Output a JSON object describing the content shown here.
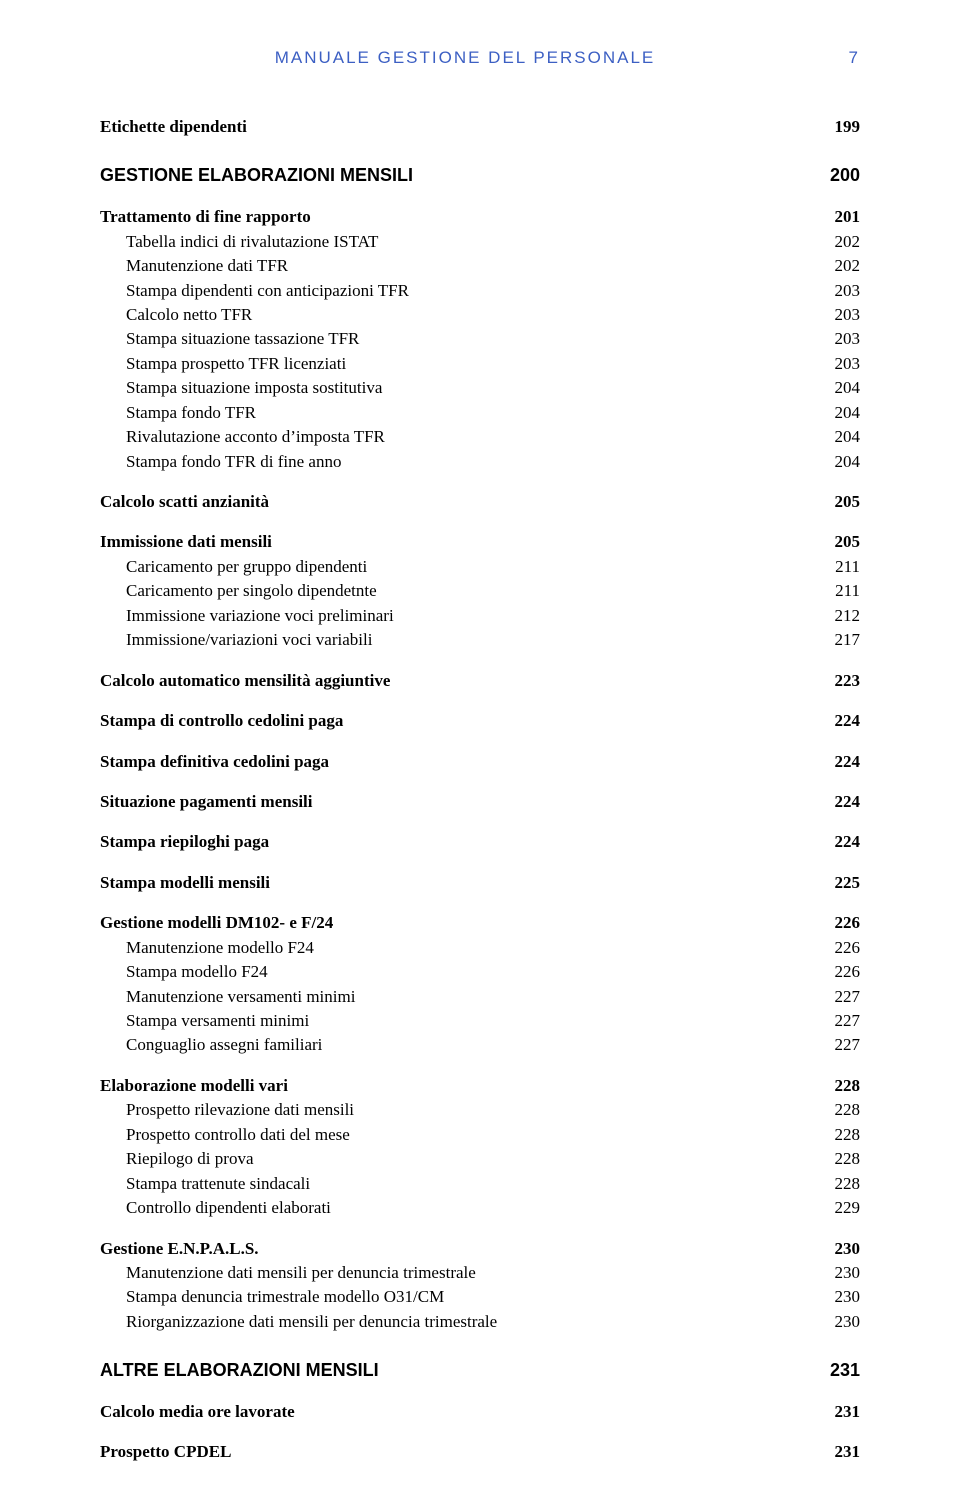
{
  "header": {
    "title": "MANUALE GESTIONE DEL PERSONALE",
    "page": "7"
  },
  "toc": [
    {
      "level": "h2",
      "bold": true,
      "indent": 0,
      "label": "Etichette dipendenti",
      "page": "199"
    },
    {
      "level": "h1",
      "bold": true,
      "indent": 0,
      "label": "GESTIONE ELABORAZIONI MENSILI",
      "page": "200"
    },
    {
      "level": "h2",
      "bold": true,
      "indent": 0,
      "label": "Trattamento di fine rapporto",
      "page": "201"
    },
    {
      "level": "h3",
      "bold": false,
      "indent": 1,
      "label": "Tabella indici di rivalutazione ISTAT",
      "page": "202"
    },
    {
      "level": "h3",
      "bold": false,
      "indent": 1,
      "label": "Manutenzione dati TFR",
      "page": "202"
    },
    {
      "level": "h3",
      "bold": false,
      "indent": 1,
      "label": "Stampa dipendenti con anticipazioni TFR",
      "page": "203"
    },
    {
      "level": "h3",
      "bold": false,
      "indent": 1,
      "label": "Calcolo netto TFR",
      "page": "203"
    },
    {
      "level": "h3",
      "bold": false,
      "indent": 1,
      "label": "Stampa situazione tassazione TFR",
      "page": "203"
    },
    {
      "level": "h3",
      "bold": false,
      "indent": 1,
      "label": "Stampa prospetto TFR licenziati",
      "page": "203"
    },
    {
      "level": "h3",
      "bold": false,
      "indent": 1,
      "label": "Stampa situazione imposta sostitutiva",
      "page": "204"
    },
    {
      "level": "h3",
      "bold": false,
      "indent": 1,
      "label": "Stampa fondo TFR",
      "page": "204"
    },
    {
      "level": "h3",
      "bold": false,
      "indent": 1,
      "label": "Rivalutazione acconto d’imposta TFR",
      "page": "204"
    },
    {
      "level": "h3",
      "bold": false,
      "indent": 1,
      "label": "Stampa fondo TFR di fine anno",
      "page": "204"
    },
    {
      "level": "h2",
      "bold": true,
      "indent": 0,
      "label": "Calcolo scatti anzianità",
      "page": "205"
    },
    {
      "level": "h2",
      "bold": true,
      "indent": 0,
      "label": "Immissione dati mensili",
      "page": "205"
    },
    {
      "level": "h3",
      "bold": false,
      "indent": 1,
      "label": "Caricamento per gruppo dipendenti",
      "page": "211"
    },
    {
      "level": "h3",
      "bold": false,
      "indent": 1,
      "label": "Caricamento per singolo dipendetnte",
      "page": "211"
    },
    {
      "level": "h3",
      "bold": false,
      "indent": 1,
      "label": "Immissione variazione voci preliminari",
      "page": "212"
    },
    {
      "level": "h3",
      "bold": false,
      "indent": 1,
      "label": "Immissione/variazioni voci variabili",
      "page": "217"
    },
    {
      "level": "h2",
      "bold": true,
      "indent": 0,
      "label": "Calcolo automatico mensilità aggiuntive",
      "page": "223"
    },
    {
      "level": "h2",
      "bold": true,
      "indent": 0,
      "label": "Stampa di controllo cedolini paga",
      "page": "224"
    },
    {
      "level": "h2",
      "bold": true,
      "indent": 0,
      "label": "Stampa definitiva cedolini paga",
      "page": "224"
    },
    {
      "level": "h2",
      "bold": true,
      "indent": 0,
      "label": "Situazione pagamenti mensili",
      "page": "224"
    },
    {
      "level": "h2",
      "bold": true,
      "indent": 0,
      "label": "Stampa riepiloghi  paga",
      "page": "224"
    },
    {
      "level": "h2",
      "bold": true,
      "indent": 0,
      "label": "Stampa modelli mensili",
      "page": "225"
    },
    {
      "level": "h2",
      "bold": true,
      "indent": 0,
      "label": "Gestione modelli DM102- e  F/24",
      "page": "226"
    },
    {
      "level": "h3",
      "bold": false,
      "indent": 1,
      "label": "Manutenzione modello F24",
      "page": "226"
    },
    {
      "level": "h3",
      "bold": false,
      "indent": 1,
      "label": "Stampa modello F24",
      "page": "226"
    },
    {
      "level": "h3",
      "bold": false,
      "indent": 1,
      "label": "Manutenzione versamenti minimi",
      "page": "227"
    },
    {
      "level": "h3",
      "bold": false,
      "indent": 1,
      "label": "Stampa versamenti minimi",
      "page": "227"
    },
    {
      "level": "h3",
      "bold": false,
      "indent": 1,
      "label": "Conguaglio assegni familiari",
      "page": "227"
    },
    {
      "level": "h2",
      "bold": true,
      "indent": 0,
      "label": "Elaborazione modelli vari",
      "page": "228"
    },
    {
      "level": "h3",
      "bold": false,
      "indent": 1,
      "label": "Prospetto rilevazione dati mensili",
      "page": "228"
    },
    {
      "level": "h3",
      "bold": false,
      "indent": 1,
      "label": "Prospetto controllo dati del mese",
      "page": "228"
    },
    {
      "level": "h3",
      "bold": false,
      "indent": 1,
      "label": "Riepilogo di prova",
      "page": "228"
    },
    {
      "level": "h3",
      "bold": false,
      "indent": 1,
      "label": "Stampa trattenute sindacali",
      "page": "228"
    },
    {
      "level": "h3",
      "bold": false,
      "indent": 1,
      "label": "Controllo dipendenti elaborati",
      "page": "229"
    },
    {
      "level": "h2",
      "bold": true,
      "indent": 0,
      "label": "Gestione E.N.P.A.L.S.",
      "page": "230"
    },
    {
      "level": "h3",
      "bold": false,
      "indent": 1,
      "label": "Manutenzione dati mensili per denuncia trimestrale",
      "page": "230"
    },
    {
      "level": "h3",
      "bold": false,
      "indent": 1,
      "label": "Stampa denuncia trimestrale modello O31/CM",
      "page": "230"
    },
    {
      "level": "h3",
      "bold": false,
      "indent": 1,
      "label": "Riorganizzazione dati mensili per denuncia trimestrale",
      "page": "230"
    },
    {
      "level": "h1",
      "bold": true,
      "indent": 0,
      "label": "ALTRE ELABORAZIONI MENSILI",
      "page": "231"
    },
    {
      "level": "h2",
      "bold": true,
      "indent": 0,
      "label": "Calcolo media ore lavorate",
      "page": "231"
    },
    {
      "level": "h2",
      "bold": true,
      "indent": 0,
      "label": "Prospetto CPDEL",
      "page": "231"
    }
  ],
  "style": {
    "header_color": "#3c5fc3",
    "text_color": "#000000",
    "serif_font": "Times New Roman",
    "sans_font": "Arial",
    "page_bg": "#ffffff"
  }
}
